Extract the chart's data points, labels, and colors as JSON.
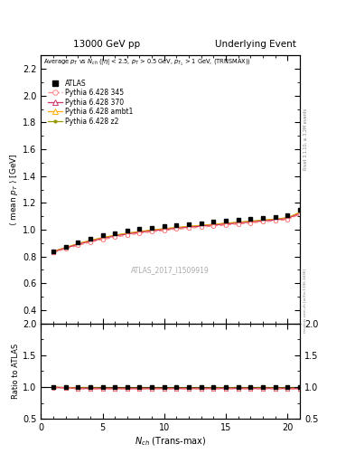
{
  "title_left": "13000 GeV pp",
  "title_right": "Underlying Event",
  "right_label_top": "Rivet 3.1.10, ≥ 3.2M events",
  "right_label_bottom": "mcplots.cern.ch [arXiv:1306.3436]",
  "watermark": "ATLAS_2017_I1509919",
  "xlabel": "N_{ch} (Trans-max)",
  "ylabel_main": "<mean p_T> [GeV]",
  "ylabel_ratio": "Ratio to ATLAS",
  "ylim_main": [
    0.3,
    2.3
  ],
  "ylim_ratio": [
    0.5,
    2.0
  ],
  "xlim": [
    0,
    21
  ],
  "yticks_main": [
    0.4,
    0.6,
    0.8,
    1.0,
    1.2,
    1.4,
    1.6,
    1.8,
    2.0,
    2.2
  ],
  "yticks_ratio": [
    0.5,
    1.0,
    1.5,
    2.0
  ],
  "xticks": [
    0,
    5,
    10,
    15,
    20
  ],
  "atlas_x": [
    1,
    2,
    3,
    4,
    5,
    6,
    7,
    8,
    9,
    10,
    11,
    12,
    13,
    14,
    15,
    16,
    17,
    18,
    19,
    20,
    21
  ],
  "atlas_y": [
    0.836,
    0.873,
    0.908,
    0.933,
    0.956,
    0.975,
    0.99,
    1.003,
    1.015,
    1.025,
    1.033,
    1.041,
    1.05,
    1.057,
    1.064,
    1.072,
    1.081,
    1.088,
    1.096,
    1.107,
    1.15
  ],
  "p345_x": [
    1,
    2,
    3,
    4,
    5,
    6,
    7,
    8,
    9,
    10,
    11,
    12,
    13,
    14,
    15,
    16,
    17,
    18,
    19,
    20,
    21
  ],
  "p345_y": [
    0.828,
    0.857,
    0.882,
    0.906,
    0.926,
    0.944,
    0.959,
    0.972,
    0.984,
    0.994,
    1.003,
    1.011,
    1.019,
    1.027,
    1.034,
    1.042,
    1.05,
    1.058,
    1.066,
    1.076,
    1.115
  ],
  "p370_x": [
    1,
    2,
    3,
    4,
    5,
    6,
    7,
    8,
    9,
    10,
    11,
    12,
    13,
    14,
    15,
    16,
    17,
    18,
    19,
    20,
    21
  ],
  "p370_y": [
    0.834,
    0.862,
    0.89,
    0.913,
    0.934,
    0.952,
    0.967,
    0.98,
    0.991,
    1.001,
    1.01,
    1.018,
    1.026,
    1.034,
    1.042,
    1.049,
    1.057,
    1.065,
    1.073,
    1.083,
    1.122
  ],
  "ambt1_x": [
    1,
    2,
    3,
    4,
    5,
    6,
    7,
    8,
    9,
    10,
    11,
    12,
    13,
    14,
    15,
    16,
    17,
    18,
    19,
    20,
    21
  ],
  "ambt1_y": [
    0.836,
    0.864,
    0.893,
    0.917,
    0.938,
    0.956,
    0.971,
    0.984,
    0.995,
    1.005,
    1.014,
    1.022,
    1.03,
    1.038,
    1.046,
    1.053,
    1.061,
    1.069,
    1.077,
    1.087,
    1.127
  ],
  "z2_x": [
    1,
    2,
    3,
    4,
    5,
    6,
    7,
    8,
    9,
    10,
    11,
    12,
    13,
    14,
    15,
    16,
    17,
    18,
    19,
    20,
    21
  ],
  "z2_y": [
    0.838,
    0.866,
    0.895,
    0.919,
    0.94,
    0.958,
    0.973,
    0.986,
    0.997,
    1.007,
    1.016,
    1.024,
    1.032,
    1.04,
    1.048,
    1.055,
    1.063,
    1.071,
    1.079,
    1.089,
    1.129
  ],
  "atlas_color": "#000000",
  "p345_color": "#ff8080",
  "p370_color": "#cc3366",
  "ambt1_color": "#ffaa00",
  "z2_color": "#999900",
  "legend_entries": [
    "ATLAS",
    "Pythia 6.428 345",
    "Pythia 6.428 370",
    "Pythia 6.428 ambt1",
    "Pythia 6.428 z2"
  ]
}
